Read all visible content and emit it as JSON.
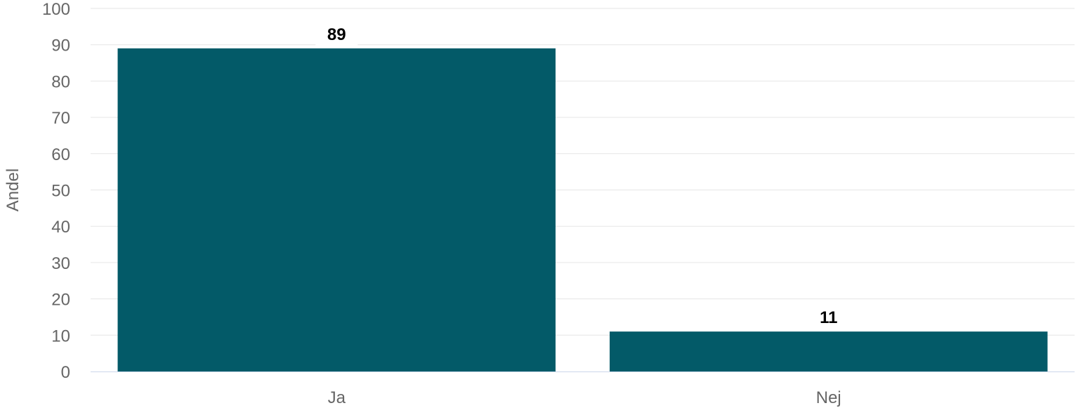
{
  "chart_data": {
    "type": "bar",
    "title": "",
    "xlabel": "",
    "ylabel": "Andel",
    "categories": [
      "Ja",
      "Nej"
    ],
    "values": [
      89,
      11
    ],
    "data_labels": [
      "89",
      "11"
    ],
    "ylim": [
      0,
      100
    ],
    "yticks": [
      0,
      10,
      20,
      30,
      40,
      50,
      60,
      70,
      80,
      90,
      100
    ],
    "grid": true,
    "legend": "none",
    "bar_color": "#035a68"
  }
}
